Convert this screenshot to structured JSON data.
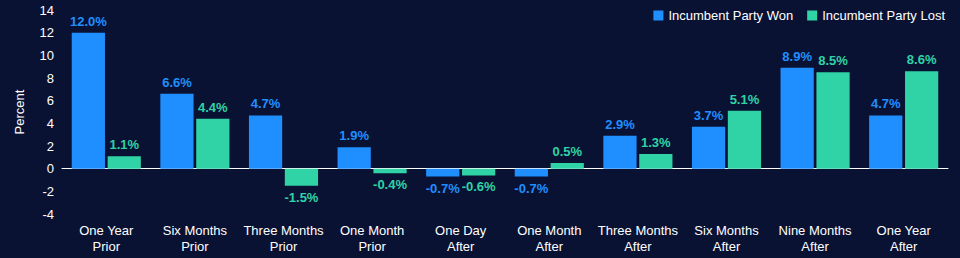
{
  "chart_data": {
    "type": "bar",
    "y_label": "Percent",
    "categories": [
      "One Year Prior",
      "Six Months Prior",
      "Three Months Prior",
      "One Month Prior",
      "One Day After",
      "One Month After",
      "Three Months After",
      "Six Months After",
      "Nine Months After",
      "One Year After"
    ],
    "series": [
      {
        "name": "Incumbent Party Won",
        "color": "#1f8fff",
        "values": [
          12.0,
          6.6,
          4.7,
          1.9,
          -0.7,
          -0.7,
          2.9,
          3.7,
          8.9,
          4.7
        ],
        "value_labels": [
          "12.0%",
          "6.6%",
          "4.7%",
          "1.9%",
          "-0.7%",
          "-0.7%",
          "2.9%",
          "3.7%",
          "8.9%",
          "4.7%"
        ]
      },
      {
        "name": "Incumbent Party Lost",
        "color": "#2fd3a6",
        "values": [
          1.1,
          4.4,
          -1.5,
          -0.4,
          -0.6,
          0.5,
          1.3,
          5.1,
          8.5,
          8.6
        ],
        "value_labels": [
          "1.1%",
          "4.4%",
          "-1.5%",
          "-0.4%",
          "-0.6%",
          "0.5%",
          "1.3%",
          "5.1%",
          "8.5%",
          "8.6%"
        ]
      }
    ],
    "ylim": [
      -4,
      14
    ],
    "yticks": [
      -4,
      -2,
      0,
      2,
      4,
      6,
      8,
      10,
      12,
      14
    ],
    "grid": false,
    "legend": "top-right",
    "data_labels": true
  }
}
